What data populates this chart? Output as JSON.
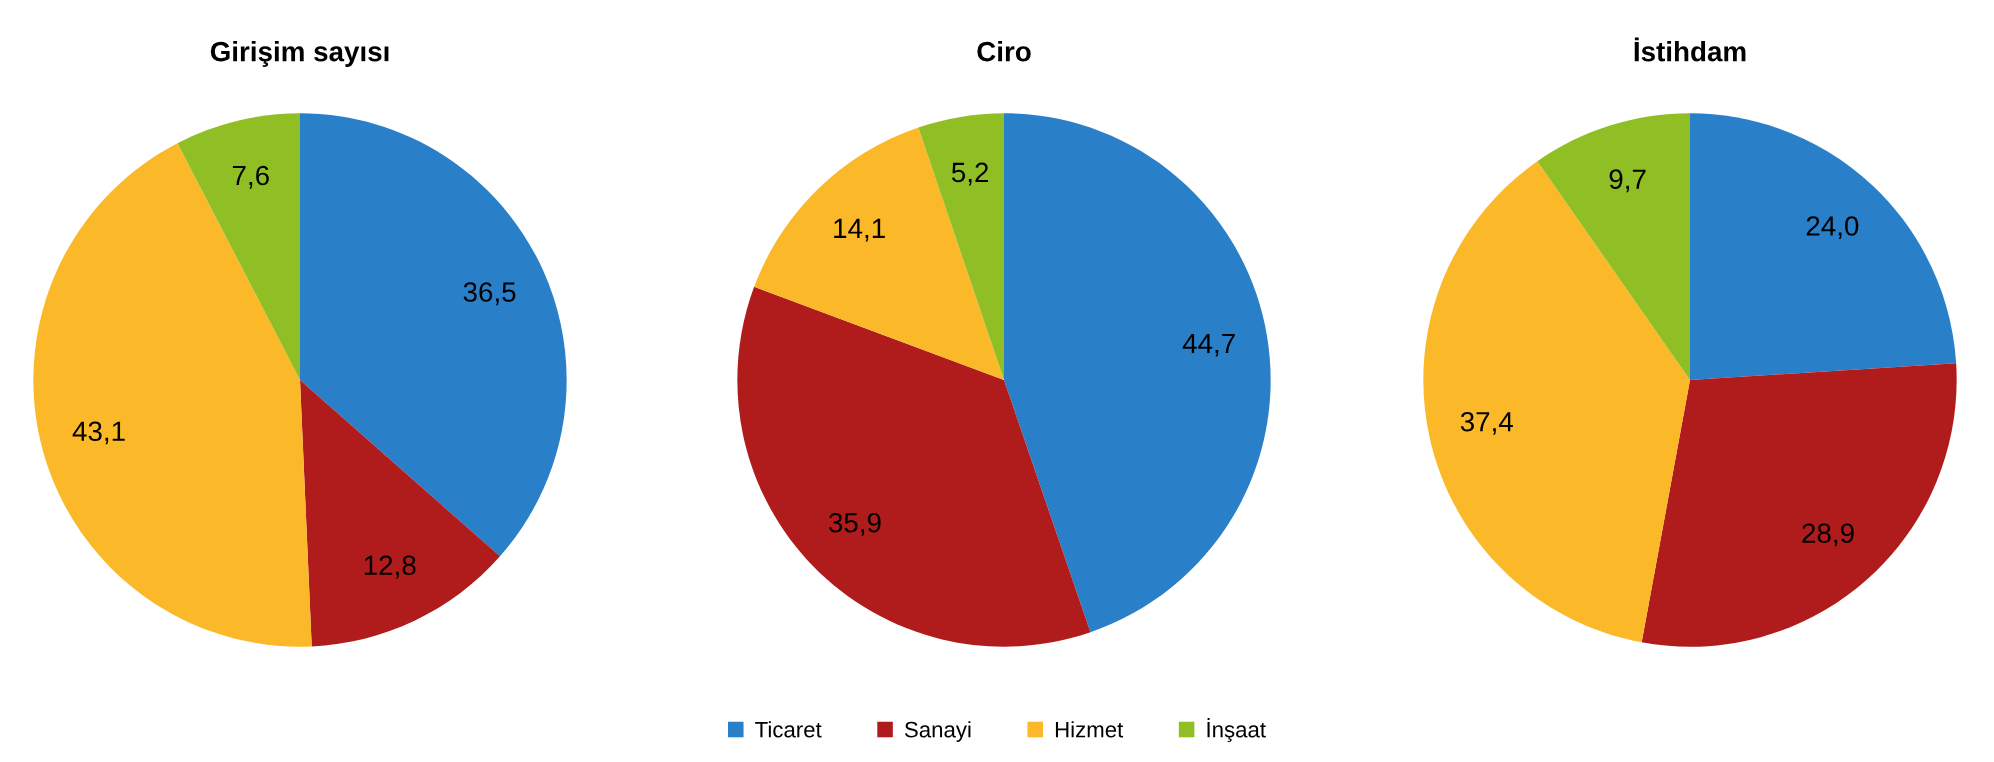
{
  "chart_data": [
    {
      "type": "pie",
      "title": "Girişim sayısı",
      "categories": [
        "Ticaret",
        "Sanayi",
        "Hizmet",
        "İnşaat"
      ],
      "values": [
        36.5,
        12.8,
        43.1,
        7.6
      ],
      "value_labels": [
        "36,5",
        "12,8",
        "43,1",
        "7,6"
      ],
      "colors": [
        "#2a7fc9",
        "#b01c1c",
        "#fbb829",
        "#8fbf25"
      ],
      "legend": "bottom"
    },
    {
      "type": "pie",
      "title": "Ciro",
      "categories": [
        null,
        null,
        null,
        null
      ],
      "values": [
        44.7,
        35.9,
        14.1,
        5.2
      ],
      "value_labels": [
        "44,7",
        "35,9",
        "14,1",
        "5,2"
      ],
      "colors": [
        "#2a7fc9",
        "#b01c1c",
        "#fbb829",
        "#8fbf25"
      ]
    },
    {
      "type": "pie",
      "title": "İstihdam",
      "categories": [
        null,
        null,
        null,
        null
      ],
      "values": [
        24.0,
        28.9,
        37.4,
        9.7
      ],
      "value_labels": [
        "24,0",
        "28,9",
        "37,4",
        "9,7"
      ],
      "colors": [
        "#2a7fc9",
        "#b01c1c",
        "#fbb829",
        "#8fbf25"
      ]
    }
  ]
}
